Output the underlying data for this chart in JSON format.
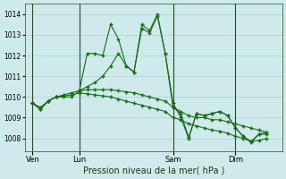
{
  "background_color": "#ceeaea",
  "grid_color": "#b8d8d8",
  "line_color": "#1a6b1a",
  "title": "Pression niveau de la mer( hPa )",
  "ylabel_ticks": [
    1008,
    1009,
    1010,
    1011,
    1012,
    1013,
    1014
  ],
  "ylim": [
    1007.4,
    1014.5
  ],
  "day_labels": [
    "Ven",
    "Lun",
    "Sam",
    "Dim"
  ],
  "day_positions": [
    0,
    6,
    18,
    26
  ],
  "xlim": [
    -1,
    32
  ],
  "series1_x": [
    0,
    1,
    2,
    3,
    4,
    5,
    6,
    7,
    8,
    9,
    10,
    11,
    12,
    13,
    14,
    15,
    16,
    17,
    18,
    19,
    20,
    21,
    22,
    23,
    24,
    25,
    26,
    27,
    28,
    29,
    30
  ],
  "series1_y": [
    1009.7,
    1009.4,
    1009.8,
    1010.0,
    1010.0,
    1010.0,
    1010.3,
    1012.1,
    1012.1,
    1012.0,
    1013.5,
    1012.8,
    1011.5,
    1011.2,
    1013.5,
    1013.2,
    1014.0,
    1012.1,
    1009.7,
    1009.0,
    1008.0,
    1009.2,
    1009.1,
    1009.2,
    1009.3,
    1009.1,
    1008.5,
    1008.1,
    1007.8,
    1008.2,
    1008.3
  ],
  "series2_x": [
    0,
    1,
    2,
    3,
    4,
    5,
    6,
    7,
    8,
    9,
    10,
    11,
    12,
    13,
    14,
    15,
    16,
    17,
    18,
    19,
    20,
    21,
    22,
    23,
    24,
    25,
    26,
    27,
    28,
    29,
    30
  ],
  "series2_y": [
    1009.7,
    1009.5,
    1009.8,
    1010.0,
    1010.1,
    1010.2,
    1010.3,
    1010.35,
    1010.35,
    1010.35,
    1010.35,
    1010.3,
    1010.25,
    1010.2,
    1010.1,
    1010.0,
    1009.9,
    1009.8,
    1009.5,
    1009.3,
    1009.1,
    1009.0,
    1009.0,
    1008.9,
    1008.9,
    1008.8,
    1008.7,
    1008.6,
    1008.5,
    1008.4,
    1008.3
  ],
  "series3_x": [
    0,
    1,
    2,
    3,
    4,
    5,
    6,
    7,
    8,
    9,
    10,
    11,
    12,
    13,
    14,
    15,
    16,
    17,
    18,
    19,
    20,
    21,
    22,
    23,
    24,
    25,
    26,
    27,
    28,
    29,
    30
  ],
  "series3_y": [
    1009.7,
    1009.4,
    1009.8,
    1010.0,
    1010.05,
    1010.1,
    1010.2,
    1010.15,
    1010.1,
    1010.05,
    1010.0,
    1009.9,
    1009.8,
    1009.7,
    1009.6,
    1009.5,
    1009.4,
    1009.3,
    1009.0,
    1008.9,
    1008.7,
    1008.6,
    1008.5,
    1008.4,
    1008.35,
    1008.25,
    1008.1,
    1008.0,
    1007.85,
    1007.9,
    1008.0
  ],
  "series4_x": [
    6,
    7,
    8,
    9,
    10,
    11,
    12,
    13,
    14,
    15,
    16,
    17,
    18,
    19,
    20,
    21,
    22,
    23,
    24,
    25,
    26,
    27,
    28,
    29,
    30
  ],
  "series4_y": [
    1010.3,
    1010.5,
    1010.7,
    1011.0,
    1011.5,
    1012.1,
    1011.5,
    1011.2,
    1013.3,
    1013.1,
    1013.9,
    1012.1,
    1009.5,
    1009.2,
    1008.05,
    1009.2,
    1009.1,
    1009.2,
    1009.3,
    1009.1,
    1008.5,
    1008.1,
    1007.85,
    1008.2,
    1008.2
  ]
}
